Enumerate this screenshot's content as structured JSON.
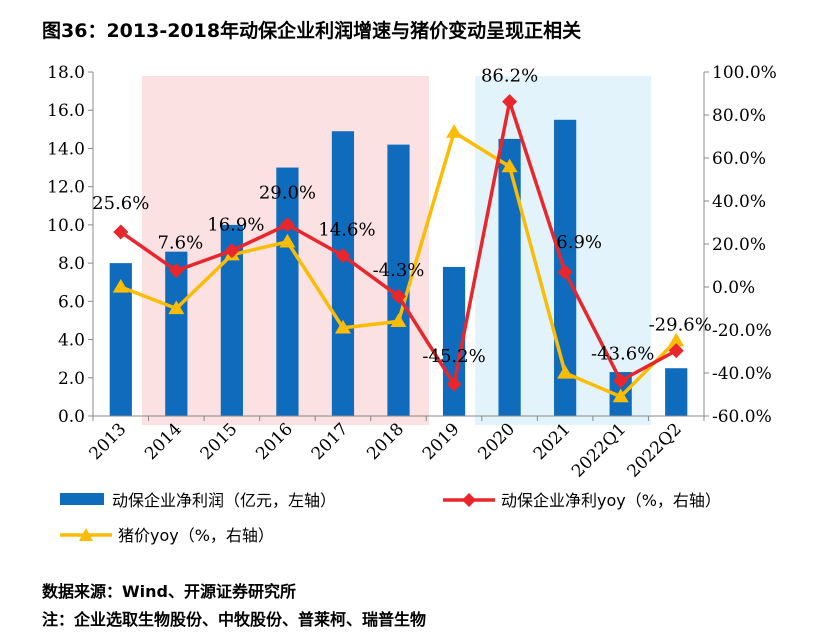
{
  "title": "图36：2013-2018年动保企业利润增速与猪价变动呈现正相关",
  "source": "数据来源：Wind、开源证券研究所",
  "note": "注：企业选取生物股份、中牧股份、普莱柯、瑞普生物",
  "colors": {
    "bar": "#0f6cbd",
    "profit_yoy": "#e8262b",
    "hog_yoy": "#fbbc05",
    "pink_band": "#fbe1e1",
    "blue_band": "#e3f3fb"
  },
  "chart_data": {
    "type": "bar+line",
    "categories": [
      "2013",
      "2014",
      "2015",
      "2016",
      "2017",
      "2018",
      "2019",
      "2020",
      "2021",
      "2022Q1",
      "2022Q2"
    ],
    "left_axis": {
      "range": [
        0,
        18
      ],
      "step": 2,
      "ticks": [
        "0.0",
        "2.0",
        "4.0",
        "6.0",
        "8.0",
        "10.0",
        "12.0",
        "14.0",
        "16.0",
        "18.0"
      ]
    },
    "right_axis": {
      "range": [
        -60,
        100
      ],
      "step": 20,
      "ticks": [
        "-60.0%",
        "-40.0%",
        "-20.0%",
        "0.0%",
        "20.0%",
        "40.0%",
        "60.0%",
        "80.0%",
        "100.0%"
      ]
    },
    "shaded_regions": [
      {
        "from": "2014",
        "to": "2018",
        "color": "pink"
      },
      {
        "from": "2020",
        "to": "2022Q1",
        "color": "blue"
      }
    ],
    "series": [
      {
        "name": "动保企业净利润（亿元，左轴）",
        "type": "bar",
        "axis": "left",
        "values": [
          8.0,
          8.6,
          10.0,
          13.0,
          14.9,
          14.2,
          7.8,
          14.5,
          15.5,
          2.3,
          2.5
        ]
      },
      {
        "name": "动保企业净利yoy（%，右轴）",
        "type": "line",
        "axis": "right",
        "marker": "diamond",
        "values": [
          25.6,
          7.6,
          16.9,
          29.0,
          14.6,
          -4.3,
          -45.2,
          86.2,
          6.9,
          -43.6,
          -29.6
        ],
        "labels": [
          "25.6%",
          "7.6%",
          "16.9%",
          "29.0%",
          "14.6%",
          "-4.3%",
          "-45.2%",
          "86.2%",
          "6.9%",
          "-43.6%",
          "-29.6%"
        ]
      },
      {
        "name": "猪价yoy（%，右轴）",
        "type": "line",
        "axis": "right",
        "marker": "triangle",
        "values": [
          0.0,
          -10.0,
          15.0,
          21.0,
          -19.0,
          -16.0,
          72.0,
          56.0,
          -40.0,
          -51.0,
          -25.0
        ]
      }
    ]
  }
}
